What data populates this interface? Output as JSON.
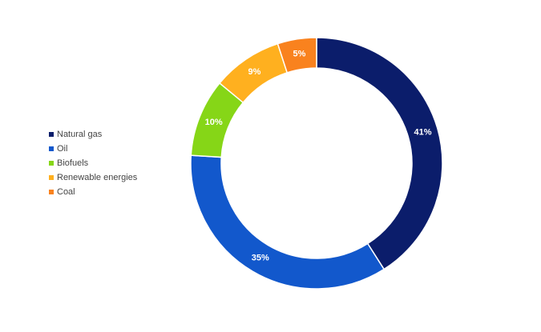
{
  "chart_data": {
    "type": "donut",
    "categories": [
      "Natural gas",
      "Oil",
      "Biofuels",
      "Renewable energies",
      "Coal"
    ],
    "values": [
      41,
      35,
      10,
      9,
      5
    ],
    "value_labels": [
      "41%",
      "35%",
      "10%",
      "9%",
      "5%"
    ],
    "colors": [
      "#0b1d6b",
      "#1258cc",
      "#86d617",
      "#ffb01f",
      "#f9821e"
    ],
    "legend": "left"
  }
}
